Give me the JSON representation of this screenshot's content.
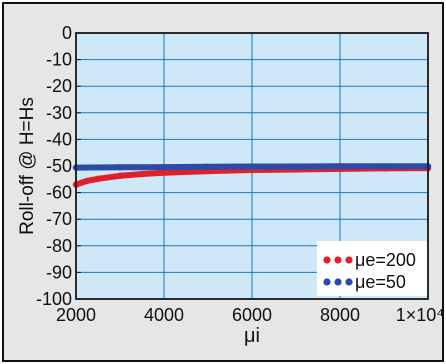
{
  "chart_data": {
    "type": "line",
    "xlabel": "μi",
    "ylabel": "Roll-off @ H=Hs",
    "xlim": [
      2000,
      10000
    ],
    "ylim": [
      -100,
      0
    ],
    "x_ticks": [
      {
        "value": 2000,
        "label": "2000"
      },
      {
        "value": 4000,
        "label": "4000"
      },
      {
        "value": 6000,
        "label": "6000"
      },
      {
        "value": 8000,
        "label": "8000"
      },
      {
        "value": 10000,
        "label": "1×10⁴"
      }
    ],
    "y_ticks": [
      0,
      -10,
      -20,
      -30,
      -40,
      -50,
      -60,
      -70,
      -80,
      -90,
      -100
    ],
    "grid": true,
    "legend_position": "bottom-right",
    "plot_background": "#cfe8f7",
    "grid_color": "#1a78c2",
    "series": [
      {
        "name": "μe=200",
        "color": "#e0202a",
        "x": [
          2000,
          2250,
          2500,
          3000,
          3500,
          4000,
          5000,
          6000,
          7000,
          8000,
          9000,
          10000
        ],
        "y": [
          -57,
          -55.6,
          -54.8,
          -53.7,
          -53,
          -52.5,
          -51.9,
          -51.5,
          -51.3,
          -51.1,
          -50.9,
          -50.8
        ]
      },
      {
        "name": "μe=50",
        "color": "#2c4aa8",
        "x": [
          2000,
          3000,
          4000,
          5000,
          6000,
          7000,
          8000,
          9000,
          10000
        ],
        "y": [
          -50.6,
          -50.5,
          -50.4,
          -50.3,
          -50.2,
          -50.2,
          -50.1,
          -50.1,
          -50.1
        ]
      }
    ]
  }
}
